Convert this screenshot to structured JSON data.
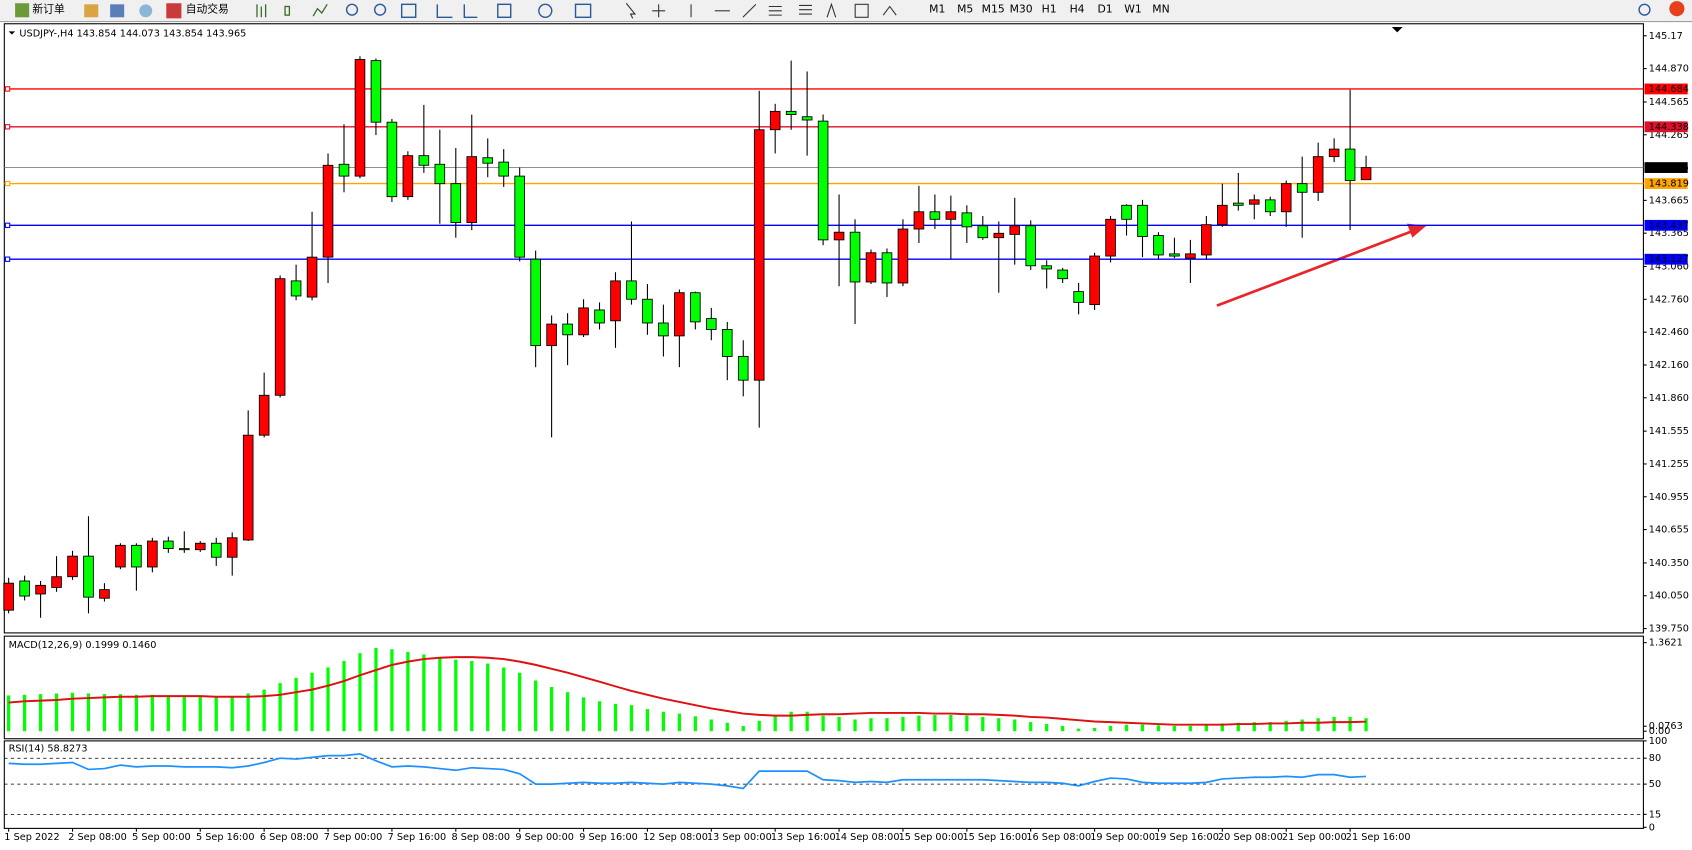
{
  "toolbar": {
    "new_order": "新订单",
    "auto_trading": "自动交易",
    "timeframes": [
      "M1",
      "M5",
      "M15",
      "M30",
      "H1",
      "H4",
      "D1",
      "W1",
      "MN"
    ]
  },
  "chart_data": [
    {
      "type": "candlestick",
      "title": "USDJPY-,H4  143.854 144.073 143.854 143.965",
      "categories": [
        "1 Sep 2022",
        null,
        null,
        null,
        "2 Sep 08:00",
        null,
        null,
        null,
        "5 Sep 00:00",
        null,
        null,
        null,
        "5 Sep 16:00",
        null,
        null,
        null,
        "6 Sep 08:00",
        null,
        null,
        null,
        "7 Sep 00:00",
        null,
        null,
        null,
        "7 Sep 16:00",
        null,
        null,
        null,
        "8 Sep 08:00",
        null,
        null,
        null,
        "9 Sep 00:00",
        null,
        null,
        null,
        "9 Sep 16:00",
        null,
        null,
        null,
        "12 Sep 08:00",
        null,
        null,
        null,
        "13 Sep 00:00",
        null,
        null,
        null,
        "13 Sep 16:00",
        null,
        null,
        null,
        "14 Sep 08:00",
        null,
        null,
        null,
        "15 Sep 00:00",
        null,
        null,
        null,
        "15 Sep 16:00",
        null,
        null,
        null,
        "16 Sep 08:00",
        null,
        null,
        null,
        "19 Sep 00:00",
        null,
        null,
        null,
        "19 Sep 16:00",
        null,
        null,
        null,
        "20 Sep 08:00",
        null,
        null,
        null,
        "21 Sep 00:00",
        null,
        null,
        null,
        "21 Sep 16:00",
        null
      ],
      "open": [
        139.918,
        140.185,
        140.066,
        140.126,
        140.224,
        140.412,
        140.027,
        140.313,
        140.511,
        140.313,
        140.55,
        140.481,
        140.471,
        140.53,
        140.402,
        140.56,
        141.518,
        141.883,
        142.929,
        142.781,
        143.146,
        143.995,
        143.887,
        144.943,
        144.38,
        143.699,
        144.074,
        143.995,
        143.818,
        143.462,
        144.055,
        144.015,
        143.887,
        143.127,
        142.337,
        142.534,
        142.436,
        142.663,
        142.564,
        142.929,
        142.761,
        142.544,
        142.426,
        142.821,
        142.584,
        142.485,
        142.238,
        142.021,
        144.311,
        144.479,
        144.43,
        144.39,
        143.304,
        143.374,
        142.919,
        143.186,
        142.91,
        143.403,
        143.561,
        143.492,
        143.551,
        143.433,
        143.324,
        143.354,
        143.433,
        143.067,
        143.028,
        142.831,
        142.712,
        143.156,
        143.62,
        143.62,
        143.344,
        143.176,
        143.137,
        143.166,
        143.443,
        143.64,
        143.63,
        143.67,
        143.561,
        143.818,
        143.739,
        144.065,
        144.134,
        143.854
      ],
      "high": [
        140.214,
        140.234,
        140.185,
        140.412,
        140.461,
        140.777,
        140.165,
        140.53,
        140.53,
        140.58,
        140.59,
        140.639,
        140.55,
        140.58,
        140.629,
        141.745,
        142.09,
        142.979,
        143.077,
        143.561,
        144.094,
        144.361,
        144.983,
        144.963,
        144.41,
        144.114,
        144.538,
        144.311,
        144.144,
        144.45,
        144.232,
        144.134,
        143.966,
        143.206,
        142.613,
        142.633,
        142.761,
        142.732,
        143.008,
        143.472,
        142.9,
        142.712,
        142.85,
        142.831,
        142.682,
        142.554,
        142.386,
        144.667,
        144.548,
        144.943,
        144.844,
        144.45,
        143.719,
        143.492,
        143.216,
        143.225,
        143.492,
        143.798,
        143.719,
        143.709,
        143.62,
        143.522,
        143.472,
        143.689,
        143.482,
        143.117,
        143.048,
        142.91,
        143.186,
        143.522,
        143.63,
        143.67,
        143.374,
        143.324,
        143.304,
        143.522,
        143.818,
        143.916,
        143.719,
        143.699,
        143.847,
        144.065,
        144.193,
        144.232,
        144.677,
        144.073
      ],
      "low": [
        139.889,
        140.007,
        139.849,
        140.086,
        140.195,
        139.889,
        139.997,
        140.293,
        140.096,
        140.264,
        140.442,
        140.442,
        140.451,
        140.323,
        140.234,
        140.55,
        141.498,
        141.863,
        142.752,
        142.752,
        142.91,
        143.739,
        143.867,
        144.262,
        143.65,
        143.67,
        143.916,
        143.452,
        143.324,
        143.393,
        143.877,
        143.788,
        143.107,
        142.14,
        141.498,
        142.159,
        142.416,
        142.485,
        142.317,
        142.712,
        142.436,
        142.238,
        142.14,
        142.485,
        142.386,
        142.021,
        141.873,
        141.587,
        144.094,
        144.311,
        144.074,
        143.255,
        142.88,
        142.534,
        142.9,
        142.781,
        142.88,
        143.275,
        143.403,
        143.127,
        143.275,
        143.304,
        142.821,
        143.077,
        143.028,
        142.86,
        142.91,
        142.623,
        142.663,
        143.097,
        143.344,
        143.146,
        143.127,
        143.137,
        142.91,
        143.127,
        143.423,
        143.571,
        143.492,
        143.522,
        143.423,
        143.324,
        143.66,
        144.015,
        143.393,
        143.854
      ],
      "close": [
        140.165,
        140.047,
        140.145,
        140.224,
        140.412,
        140.037,
        140.106,
        140.511,
        140.313,
        140.55,
        140.481,
        140.471,
        140.53,
        140.402,
        140.58,
        141.518,
        141.883,
        142.949,
        142.791,
        143.146,
        143.986,
        143.887,
        144.953,
        144.38,
        143.699,
        144.074,
        143.986,
        143.818,
        143.462,
        144.065,
        144.005,
        143.887,
        143.146,
        142.337,
        142.534,
        142.436,
        142.682,
        142.544,
        142.929,
        142.761,
        142.544,
        142.426,
        142.821,
        142.554,
        142.485,
        142.238,
        142.021,
        144.311,
        144.479,
        144.45,
        144.4,
        143.304,
        143.374,
        142.919,
        143.186,
        142.91,
        143.403,
        143.561,
        143.492,
        143.561,
        143.423,
        143.324,
        143.364,
        143.433,
        143.067,
        143.038,
        142.949,
        142.732,
        143.156,
        143.492,
        143.492,
        143.334,
        143.166,
        143.156,
        143.176,
        143.443,
        143.62,
        143.62,
        143.67,
        143.561,
        143.818,
        143.739,
        144.065,
        144.134,
        143.847,
        143.965
      ],
      "up_color": "#ff0000",
      "down_color": "#00ff00",
      "ylim": [
        139.72,
        145.28
      ],
      "yticks": [
        145.17,
        {
          "value": 144.87,
          "label": "144.870"
        },
        144.565,
        144.265,
        143.665,
        143.365,
        {
          "value": 143.06,
          "label": "143.060"
        },
        {
          "value": 142.76,
          "label": "142.760"
        },
        {
          "value": 142.46,
          "label": "142.460"
        },
        {
          "value": 142.16,
          "label": "142.160"
        },
        {
          "value": 141.86,
          "label": "141.860"
        },
        141.555,
        141.255,
        140.955,
        140.655,
        {
          "value": 140.35,
          "label": "140.350"
        },
        {
          "value": 140.05,
          "label": "140.050"
        },
        {
          "value": 139.75,
          "label": "139.750"
        }
      ],
      "hlines": [
        {
          "value": 144.684,
          "color": "#ff0000"
        },
        {
          "value": 144.338,
          "color": "#e0102a"
        },
        {
          "value": 143.819,
          "color": "#ffa500"
        },
        {
          "value": 143.437,
          "color": "#0000ff"
        },
        {
          "value": 143.127,
          "color": "#0000ff"
        }
      ],
      "last_price": {
        "value": 143.965,
        "color": "#000000"
      }
    },
    {
      "type": "macd",
      "title": "MACD(12,26,9) 0.1999 0.1460",
      "series": [
        {
          "color": "#00ff00",
          "style": "bar",
          "values": [
            0.55,
            0.56,
            0.57,
            0.58,
            0.59,
            0.58,
            0.57,
            0.57,
            0.56,
            0.56,
            0.55,
            0.54,
            0.53,
            0.53,
            0.53,
            0.58,
            0.64,
            0.74,
            0.82,
            0.9,
            0.98,
            1.08,
            1.2,
            1.28,
            1.26,
            1.22,
            1.18,
            1.14,
            1.1,
            1.08,
            1.04,
            0.98,
            0.9,
            0.78,
            0.68,
            0.6,
            0.52,
            0.46,
            0.42,
            0.4,
            0.34,
            0.3,
            0.27,
            0.23,
            0.18,
            0.13,
            0.08,
            0.16,
            0.24,
            0.3,
            0.3,
            0.24,
            0.22,
            0.18,
            0.2,
            0.2,
            0.22,
            0.24,
            0.25,
            0.25,
            0.24,
            0.22,
            0.2,
            0.18,
            0.14,
            0.11,
            0.08,
            0.04,
            0.05,
            0.08,
            0.1,
            0.1,
            0.09,
            0.08,
            0.08,
            0.1,
            0.12,
            0.13,
            0.14,
            0.14,
            0.16,
            0.18,
            0.2,
            0.22,
            0.22,
            0.1999
          ]
        },
        {
          "color": "#e01010",
          "style": "line",
          "values": [
            0.44,
            0.46,
            0.47,
            0.48,
            0.5,
            0.51,
            0.52,
            0.53,
            0.53,
            0.54,
            0.54,
            0.54,
            0.54,
            0.53,
            0.53,
            0.53,
            0.54,
            0.56,
            0.6,
            0.64,
            0.7,
            0.77,
            0.86,
            0.94,
            1.02,
            1.07,
            1.11,
            1.13,
            1.14,
            1.14,
            1.13,
            1.11,
            1.07,
            1.02,
            0.96,
            0.9,
            0.83,
            0.76,
            0.69,
            0.62,
            0.56,
            0.5,
            0.45,
            0.4,
            0.35,
            0.31,
            0.27,
            0.25,
            0.24,
            0.24,
            0.25,
            0.26,
            0.26,
            0.27,
            0.28,
            0.28,
            0.28,
            0.28,
            0.27,
            0.27,
            0.26,
            0.26,
            0.25,
            0.24,
            0.22,
            0.21,
            0.19,
            0.17,
            0.15,
            0.14,
            0.13,
            0.12,
            0.11,
            0.1,
            0.1,
            0.1,
            0.1,
            0.11,
            0.11,
            0.12,
            0.12,
            0.13,
            0.13,
            0.14,
            0.14,
            0.146
          ]
        }
      ],
      "ylim": [
        0,
        1.3621
      ],
      "yticks": [
        1.3621,
        0.0763,
        {
          "value": 0,
          "label": "0.00"
        }
      ]
    },
    {
      "type": "rsi",
      "title": "RSI(14) 58.8273",
      "color": "#1e90ff",
      "values": [
        74,
        73,
        73,
        74,
        75,
        67,
        68,
        72,
        70,
        71,
        71,
        70,
        70,
        70,
        69,
        71,
        75,
        80,
        79,
        81,
        83,
        83,
        85,
        77,
        70,
        71,
        70,
        68,
        66,
        69,
        68,
        67,
        62,
        50,
        50,
        51,
        52,
        51,
        51,
        52,
        51,
        50,
        52,
        51,
        50,
        48,
        45,
        65,
        65,
        65,
        65,
        55,
        54,
        52,
        53,
        52,
        55,
        55,
        55,
        55,
        55,
        55,
        54,
        53,
        52,
        52,
        51,
        48,
        53,
        57,
        56,
        52,
        51,
        51,
        51,
        52,
        56,
        57,
        58,
        58,
        59,
        58,
        61,
        61,
        58,
        58.8273
      ],
      "ylim": [
        0,
        100
      ],
      "yticks": [
        100,
        80,
        50,
        15,
        0
      ]
    }
  ]
}
